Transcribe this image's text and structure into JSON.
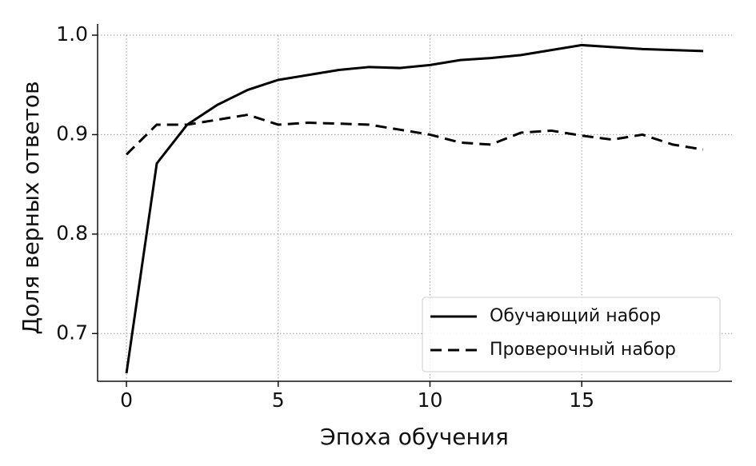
{
  "chart_data": {
    "type": "line",
    "x_label": "Эпоха обучения",
    "y_label": "Доля верных ответов",
    "x": [
      0,
      1,
      2,
      3,
      4,
      5,
      6,
      7,
      8,
      9,
      10,
      11,
      12,
      13,
      14,
      15,
      16,
      17,
      18,
      19
    ],
    "series": [
      {
        "name": "Обучающий набор",
        "color": "#000000",
        "dash": "solid",
        "values": [
          0.66,
          0.871,
          0.91,
          0.93,
          0.945,
          0.955,
          0.96,
          0.965,
          0.968,
          0.967,
          0.97,
          0.975,
          0.977,
          0.98,
          0.985,
          0.99,
          0.988,
          0.986,
          0.985,
          0.984
        ]
      },
      {
        "name": "Проверочный набор",
        "color": "#000000",
        "dash": "dashed",
        "values": [
          0.88,
          0.91,
          0.91,
          0.915,
          0.92,
          0.91,
          0.912,
          0.911,
          0.91,
          0.905,
          0.9,
          0.892,
          0.89,
          0.902,
          0.904,
          0.899,
          0.895,
          0.9,
          0.89,
          0.885
        ]
      }
    ],
    "xlim": [
      -0.95,
      19.95
    ],
    "ylim": [
      0.652,
      1.0
    ],
    "xticks": [
      0,
      5,
      10,
      15
    ],
    "yticks": [
      0.7,
      0.8,
      0.9,
      {
        "value": 1,
        "label": "1.0"
      }
    ],
    "grid": true,
    "legend": "lower right"
  }
}
